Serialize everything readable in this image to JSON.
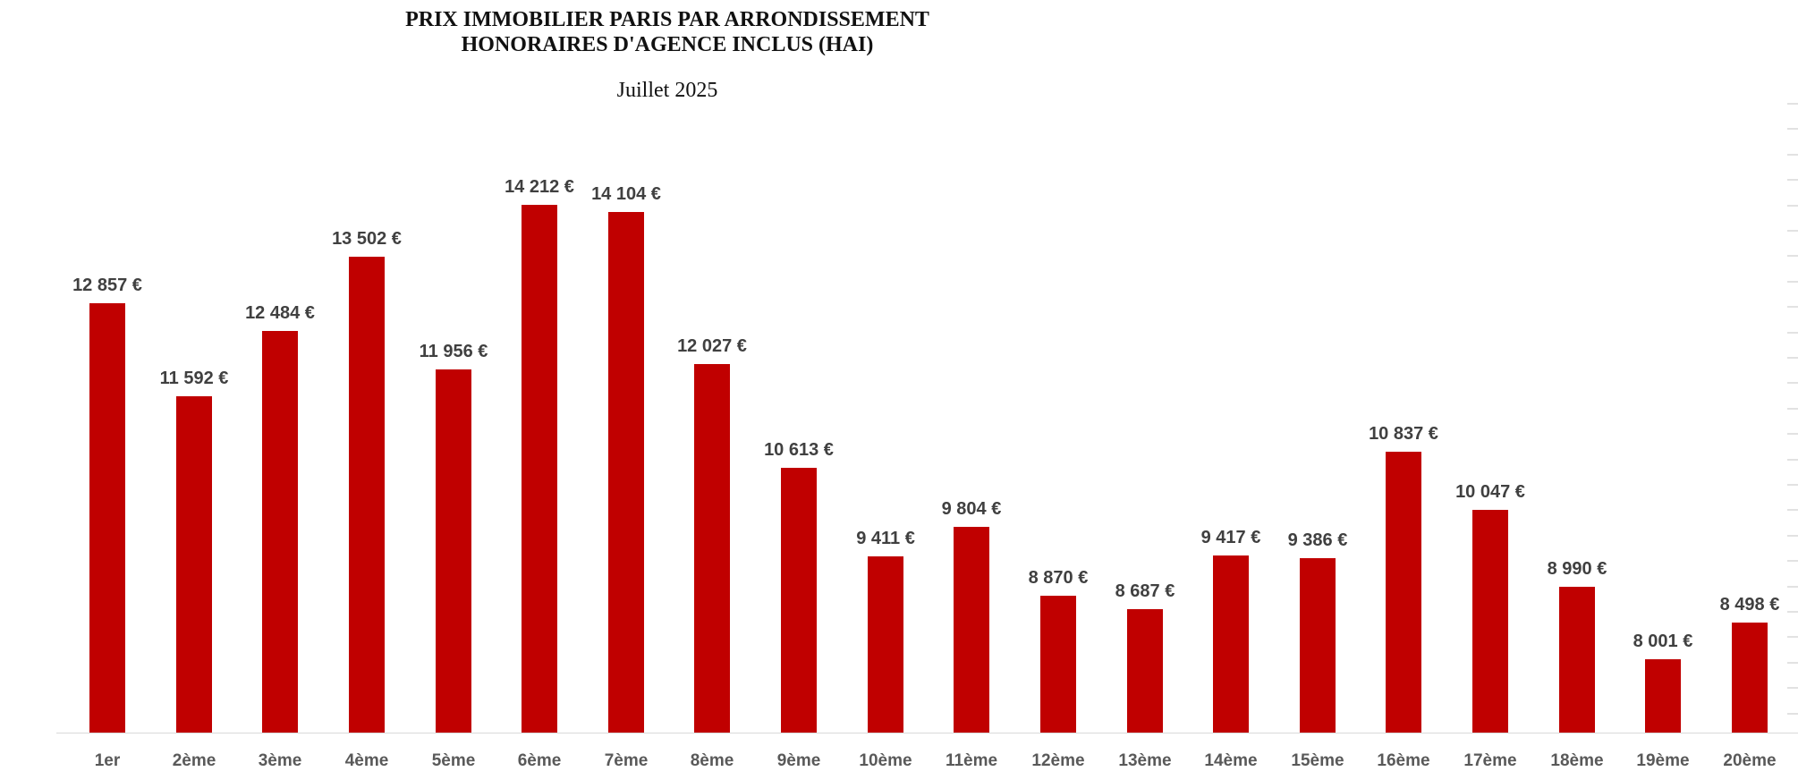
{
  "chart_data": {
    "type": "bar",
    "title_line1": "PRIX IMMOBILIER PARIS PAR ARRONDISSEMENT",
    "title_line2": "HONORAIRES D'AGENCE INCLUS (HAI)",
    "subtitle": "Juillet 2025",
    "categories": [
      "1er",
      "2ème",
      "3ème",
      "4ème",
      "5ème",
      "6ème",
      "7ème",
      "8ème",
      "9ème",
      "10ème",
      "11ème",
      "12ème",
      "13ème",
      "14ème",
      "15ème",
      "16ème",
      "17ème",
      "18ème",
      "19ème",
      "20ème"
    ],
    "values": [
      12857,
      11592,
      12484,
      13502,
      11956,
      14212,
      14104,
      12027,
      10613,
      9411,
      9804,
      8870,
      8687,
      9417,
      9386,
      10837,
      10047,
      8990,
      8001,
      8498
    ],
    "value_labels": [
      "12 857 €",
      "11 592 €",
      "12 484 €",
      "13 502 €",
      "11 956 €",
      "14 212 €",
      "14 104 €",
      "12 027 €",
      "10 613 €",
      "9 411 €",
      "9 804 €",
      "8 870 €",
      "8 687 €",
      "9 417 €",
      "9 386 €",
      "10 837 €",
      "10 047 €",
      "8 990 €",
      "8 001 €",
      "8 498 €"
    ],
    "unit": "€",
    "ylim": [
      7000,
      15000
    ],
    "grid": false,
    "legend": false,
    "colors": {
      "bar": "#C00000",
      "data_label": "#404040",
      "axis_label": "#595959",
      "axis_line": "#D9D9D9",
      "minor_tick": "#E2E2E2",
      "title": "#111111",
      "background": "#FFFFFF"
    }
  }
}
